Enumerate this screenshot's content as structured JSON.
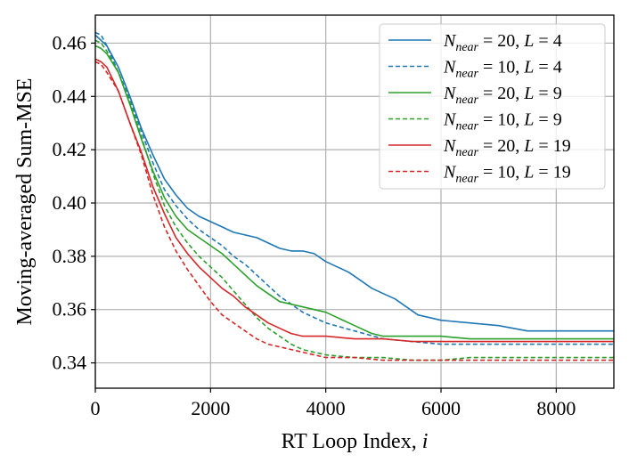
{
  "chart_data": {
    "type": "line",
    "xlabel": "RT Loop Index, i",
    "xlabel_main": "RT Loop Index, ",
    "xlabel_var": "i",
    "ylabel": "Moving-averaged Sum-MSE",
    "xlim": [
      0,
      9000
    ],
    "ylim": [
      0.3305,
      0.4705
    ],
    "xticks": [
      0,
      2000,
      4000,
      6000,
      8000
    ],
    "xtick_labels": [
      "0",
      "2000",
      "4000",
      "6000",
      "8000"
    ],
    "yticks": [
      0.34,
      0.36,
      0.38,
      0.4,
      0.42,
      0.44,
      0.46
    ],
    "ytick_labels": [
      "0.34",
      "0.36",
      "0.38",
      "0.40",
      "0.42",
      "0.44",
      "0.46"
    ],
    "grid": true,
    "legend_position": "top-right",
    "series": [
      {
        "name": "N_near = 20, L = 4",
        "legend": {
          "n": "20",
          "l": "4"
        },
        "color": "#1f77b4",
        "linestyle": "solid",
        "x": [
          0,
          100,
          200,
          400,
          600,
          800,
          1000,
          1200,
          1400,
          1600,
          1800,
          2000,
          2200,
          2400,
          2600,
          2800,
          3000,
          3200,
          3400,
          3600,
          3800,
          4000,
          4200,
          4400,
          4600,
          4800,
          5000,
          5200,
          5400,
          5600,
          5800,
          6000,
          6500,
          7000,
          7500,
          8000,
          8500,
          9000
        ],
        "y": [
          0.463,
          0.461,
          0.459,
          0.451,
          0.44,
          0.428,
          0.418,
          0.409,
          0.403,
          0.398,
          0.395,
          0.393,
          0.391,
          0.389,
          0.388,
          0.387,
          0.385,
          0.383,
          0.382,
          0.382,
          0.381,
          0.378,
          0.376,
          0.374,
          0.371,
          0.368,
          0.366,
          0.364,
          0.361,
          0.358,
          0.357,
          0.356,
          0.355,
          0.354,
          0.352,
          0.352,
          0.352,
          0.352
        ]
      },
      {
        "name": "N_near = 10, L = 4",
        "legend": {
          "n": "10",
          "l": "4"
        },
        "color": "#1f77b4",
        "linestyle": "dashed",
        "x": [
          0,
          100,
          200,
          400,
          600,
          800,
          1000,
          1200,
          1400,
          1600,
          1800,
          2000,
          2200,
          2400,
          2600,
          2800,
          3000,
          3200,
          3400,
          3600,
          3800,
          4000,
          4500,
          5000,
          5500,
          6000,
          6500,
          7000,
          7500,
          8000,
          8500,
          9000
        ],
        "y": [
          0.464,
          0.463,
          0.459,
          0.449,
          0.439,
          0.427,
          0.415,
          0.405,
          0.399,
          0.394,
          0.39,
          0.387,
          0.384,
          0.38,
          0.377,
          0.373,
          0.369,
          0.365,
          0.362,
          0.359,
          0.357,
          0.355,
          0.352,
          0.349,
          0.348,
          0.347,
          0.347,
          0.347,
          0.347,
          0.347,
          0.347,
          0.347
        ]
      },
      {
        "name": "N_near = 20, L = 9",
        "legend": {
          "n": "20",
          "l": "9"
        },
        "color": "#2ca02c",
        "linestyle": "solid",
        "x": [
          0,
          100,
          200,
          400,
          600,
          800,
          1000,
          1200,
          1400,
          1600,
          1800,
          2000,
          2200,
          2400,
          2600,
          2800,
          3000,
          3200,
          3400,
          3600,
          3800,
          4000,
          4200,
          4400,
          4600,
          4800,
          5000,
          5500,
          6000,
          6500,
          7000,
          7500,
          8000,
          8500,
          9000
        ],
        "y": [
          0.459,
          0.458,
          0.456,
          0.449,
          0.437,
          0.424,
          0.412,
          0.402,
          0.395,
          0.39,
          0.387,
          0.384,
          0.381,
          0.377,
          0.373,
          0.369,
          0.366,
          0.363,
          0.362,
          0.361,
          0.36,
          0.359,
          0.357,
          0.355,
          0.353,
          0.351,
          0.35,
          0.35,
          0.35,
          0.349,
          0.349,
          0.349,
          0.349,
          0.349,
          0.349
        ]
      },
      {
        "name": "N_near = 10, L = 9",
        "legend": {
          "n": "10",
          "l": "9"
        },
        "color": "#2ca02c",
        "linestyle": "dashed",
        "x": [
          0,
          100,
          200,
          400,
          600,
          800,
          1000,
          1200,
          1400,
          1600,
          1800,
          2000,
          2200,
          2400,
          2600,
          2800,
          3000,
          3200,
          3400,
          3600,
          3800,
          4000,
          4500,
          5000,
          5500,
          6000,
          6500,
          7000,
          7500,
          8000,
          8500,
          9000
        ],
        "y": [
          0.461,
          0.46,
          0.457,
          0.449,
          0.438,
          0.425,
          0.411,
          0.399,
          0.391,
          0.385,
          0.38,
          0.376,
          0.372,
          0.367,
          0.362,
          0.357,
          0.353,
          0.35,
          0.347,
          0.345,
          0.344,
          0.343,
          0.342,
          0.342,
          0.341,
          0.341,
          0.342,
          0.342,
          0.342,
          0.342,
          0.342,
          0.342
        ]
      },
      {
        "name": "N_near = 20, L = 19",
        "legend": {
          "n": "20",
          "l": "19"
        },
        "color": "#d62728",
        "linestyle": "solid",
        "x": [
          0,
          100,
          200,
          400,
          600,
          800,
          1000,
          1200,
          1400,
          1600,
          1800,
          2000,
          2200,
          2400,
          2600,
          2800,
          3000,
          3200,
          3400,
          3600,
          3800,
          4000,
          4500,
          5000,
          5500,
          6000,
          6500,
          7000,
          7500,
          8000,
          8500,
          9000
        ],
        "y": [
          0.454,
          0.453,
          0.451,
          0.442,
          0.43,
          0.419,
          0.406,
          0.396,
          0.387,
          0.381,
          0.376,
          0.372,
          0.368,
          0.365,
          0.361,
          0.358,
          0.355,
          0.353,
          0.351,
          0.35,
          0.35,
          0.35,
          0.349,
          0.349,
          0.348,
          0.348,
          0.348,
          0.348,
          0.348,
          0.348,
          0.348,
          0.348
        ]
      },
      {
        "name": "N_near = 10, L = 19",
        "legend": {
          "n": "10",
          "l": "19"
        },
        "color": "#d62728",
        "linestyle": "dashed",
        "x": [
          0,
          100,
          200,
          400,
          600,
          800,
          1000,
          1200,
          1400,
          1600,
          1800,
          2000,
          2200,
          2400,
          2600,
          2800,
          3000,
          3200,
          3400,
          3600,
          3800,
          4000,
          4500,
          5000,
          5500,
          6000,
          6500,
          7000,
          7500,
          8000,
          8500,
          9000
        ],
        "y": [
          0.453,
          0.452,
          0.449,
          0.442,
          0.43,
          0.418,
          0.403,
          0.391,
          0.382,
          0.375,
          0.369,
          0.363,
          0.358,
          0.355,
          0.352,
          0.349,
          0.347,
          0.346,
          0.345,
          0.344,
          0.343,
          0.342,
          0.342,
          0.341,
          0.341,
          0.341,
          0.341,
          0.341,
          0.341,
          0.341,
          0.341,
          0.341
        ]
      }
    ]
  }
}
